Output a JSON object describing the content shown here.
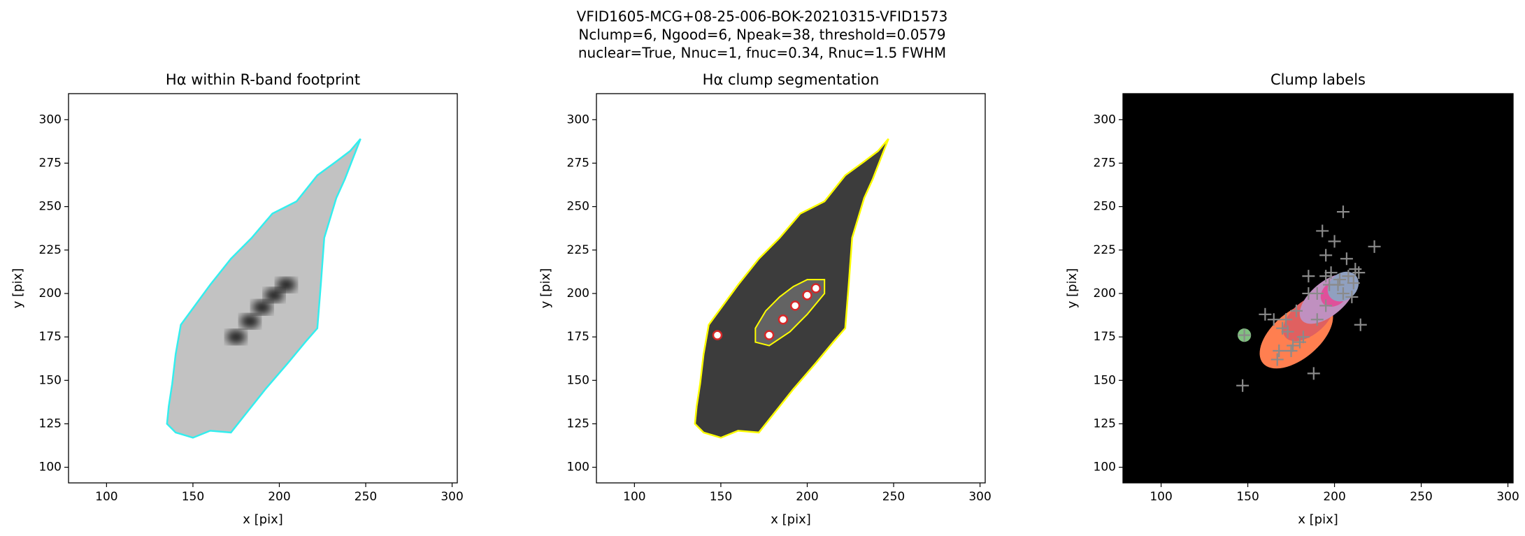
{
  "suptitle": [
    "VFID1605-MCG+08-25-006-BOK-20210315-VFID1573",
    "Nclump=6, Ngood=6, Npeak=38, threshold=0.0579",
    "nuclear=True, Nnuc=1, fnuc=0.34, Rnuc=1.5 FWHM"
  ],
  "chart_data": [
    {
      "type": "image",
      "title": "Hα within R-band footprint",
      "xlabel": "x [pix]",
      "ylabel": "y [pix]",
      "xlim": [
        78,
        303
      ],
      "ylim": [
        91,
        315
      ],
      "xticks": [
        100,
        150,
        200,
        250,
        300
      ],
      "yticks": [
        100,
        125,
        150,
        175,
        200,
        225,
        250,
        275,
        300
      ],
      "background": "#ffffff",
      "galaxy_color": "#c2c2c2",
      "contour_color": "#33eeee"
    },
    {
      "type": "image",
      "title": "Hα clump segmentation",
      "xlabel": "x [pix]",
      "ylabel": "y [pix]",
      "xlim": [
        78,
        303
      ],
      "ylim": [
        91,
        315
      ],
      "xticks": [
        100,
        150,
        200,
        250,
        300
      ],
      "yticks": [
        100,
        125,
        150,
        175,
        200,
        225,
        250,
        275,
        300
      ],
      "background": "#ffffff",
      "galaxy_color": "#3c3c3c",
      "contour_color": "#ffff00",
      "clumps": {
        "color": "#d62728",
        "x": [
          148,
          178,
          186,
          193,
          200,
          205
        ],
        "y": [
          176,
          176,
          185,
          193,
          199,
          203
        ]
      }
    },
    {
      "type": "image",
      "title": "Clump labels",
      "xlabel": "x [pix]",
      "ylabel": "y [pix]",
      "xlim": [
        78,
        303
      ],
      "ylim": [
        91,
        315
      ],
      "xticks": [
        100,
        150,
        200,
        250,
        300
      ],
      "yticks": [
        100,
        125,
        150,
        175,
        200,
        225,
        250,
        275,
        300
      ],
      "background": "#000000",
      "peaks": {
        "color": "#8a8a8a",
        "x": [
          147,
          148,
          160,
          167,
          168,
          170,
          172,
          175,
          180,
          182,
          185,
          188,
          190,
          193,
          195,
          195,
          198,
          200,
          202,
          205,
          205,
          207,
          208,
          210,
          212,
          214,
          215,
          223,
          185,
          178,
          173,
          176,
          190,
          197,
          203,
          195,
          211,
          165
        ],
        "y": [
          147,
          176,
          188,
          162,
          167,
          180,
          185,
          167,
          172,
          175,
          210,
          154,
          185,
          236,
          210,
          193,
          212,
          230,
          205,
          200,
          247,
          220,
          210,
          198,
          214,
          212,
          182,
          227,
          200,
          190,
          178,
          170,
          200,
          205,
          208,
          222,
          206,
          185
        ]
      }
    }
  ]
}
